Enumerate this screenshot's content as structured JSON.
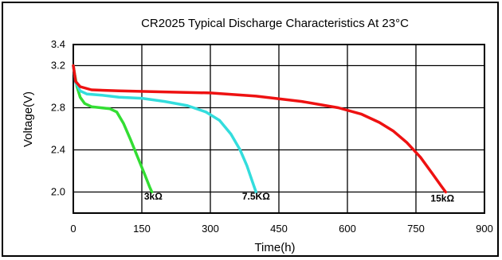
{
  "chart_data": {
    "type": "line",
    "title": "CR2025 Typical Discharge Characteristics At 23°C",
    "xlabel": "Time(h)",
    "ylabel": "Voltage(V)",
    "xlim": [
      0,
      900
    ],
    "ylim": [
      1.8,
      3.4
    ],
    "x_ticks": [
      0,
      150,
      300,
      450,
      600,
      750,
      900
    ],
    "y_ticks": [
      2.0,
      2.4,
      2.8,
      3.2,
      3.4
    ],
    "grid": true,
    "series": [
      {
        "name": "3kΩ",
        "color": "#33dd33",
        "points": [
          [
            0,
            3.2
          ],
          [
            3,
            3.12
          ],
          [
            8,
            3.0
          ],
          [
            15,
            2.9
          ],
          [
            25,
            2.84
          ],
          [
            40,
            2.81
          ],
          [
            60,
            2.8
          ],
          [
            80,
            2.79
          ],
          [
            95,
            2.76
          ],
          [
            110,
            2.65
          ],
          [
            125,
            2.5
          ],
          [
            140,
            2.34
          ],
          [
            155,
            2.18
          ],
          [
            167,
            2.05
          ],
          [
            172,
            2.0
          ]
        ]
      },
      {
        "name": "7.5KΩ",
        "color": "#33dddd",
        "points": [
          [
            0,
            3.2
          ],
          [
            5,
            3.04
          ],
          [
            15,
            2.96
          ],
          [
            30,
            2.93
          ],
          [
            60,
            2.92
          ],
          [
            100,
            2.9
          ],
          [
            150,
            2.89
          ],
          [
            200,
            2.86
          ],
          [
            250,
            2.82
          ],
          [
            290,
            2.76
          ],
          [
            320,
            2.68
          ],
          [
            345,
            2.55
          ],
          [
            365,
            2.4
          ],
          [
            380,
            2.25
          ],
          [
            392,
            2.1
          ],
          [
            400,
            2.0
          ]
        ]
      },
      {
        "name": "15kΩ",
        "color": "#ee1111",
        "points": [
          [
            0,
            3.2
          ],
          [
            5,
            3.05
          ],
          [
            15,
            3.0
          ],
          [
            40,
            2.97
          ],
          [
            100,
            2.96
          ],
          [
            200,
            2.95
          ],
          [
            300,
            2.94
          ],
          [
            400,
            2.91
          ],
          [
            500,
            2.86
          ],
          [
            580,
            2.8
          ],
          [
            630,
            2.74
          ],
          [
            670,
            2.66
          ],
          [
            700,
            2.58
          ],
          [
            730,
            2.47
          ],
          [
            760,
            2.33
          ],
          [
            785,
            2.18
          ],
          [
            805,
            2.06
          ],
          [
            815,
            2.0
          ]
        ]
      }
    ],
    "annotations": [
      {
        "text": "3kΩ",
        "x": 175,
        "y": 1.93
      },
      {
        "text": "7.5KΩ",
        "x": 400,
        "y": 1.93
      },
      {
        "text": "15kΩ",
        "x": 808,
        "y": 1.91
      }
    ]
  }
}
